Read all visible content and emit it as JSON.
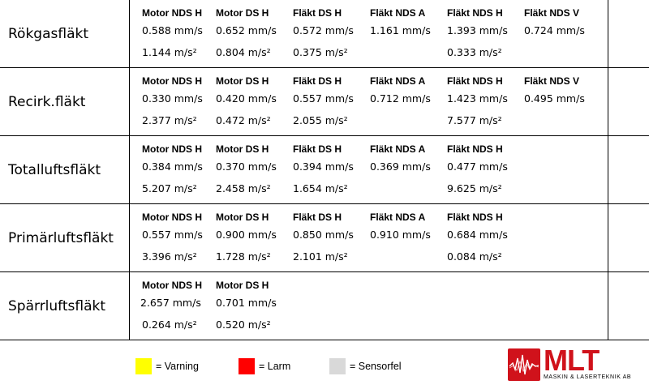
{
  "colors": {
    "varning": "#ffff00",
    "larm": "#ff0000",
    "sensorfel": "#d9d9d9",
    "logo_red": "#d0121b"
  },
  "rows": [
    {
      "title": "Rökgasfläkt",
      "sensors": [
        {
          "name": "Motor NDS H",
          "velocity": "0.588 mm/s",
          "acceleration": "1.144 m/s²"
        },
        {
          "name": "Motor DS H",
          "velocity": "0.652 mm/s",
          "acceleration": "0.804 m/s²"
        },
        {
          "name": "Fläkt DS H",
          "velocity": "0.572 mm/s",
          "acceleration": "0.375 m/s²"
        },
        {
          "name": "Fläkt NDS A",
          "velocity": "1.161 mm/s",
          "acceleration": ""
        },
        {
          "name": "Fläkt NDS H",
          "velocity": "1.393 mm/s",
          "acceleration": "0.333 m/s²"
        },
        {
          "name": "Fläkt NDS V",
          "velocity": "0.724 mm/s",
          "acceleration": ""
        }
      ]
    },
    {
      "title": "Recirk.fläkt",
      "sensors": [
        {
          "name": "Motor NDS H",
          "velocity": "0.330 mm/s",
          "acceleration": "2.377 m/s²"
        },
        {
          "name": "Motor DS H",
          "velocity": "0.420 mm/s",
          "acceleration": "0.472 m/s²"
        },
        {
          "name": "Fläkt DS H",
          "velocity": "0.557 mm/s",
          "acceleration": "2.055 m/s²"
        },
        {
          "name": "Fläkt NDS A",
          "velocity": "0.712 mm/s",
          "acceleration": ""
        },
        {
          "name": "Fläkt NDS H",
          "velocity": "1.423 mm/s",
          "acceleration": "7.577 m/s²"
        },
        {
          "name": "Fläkt NDS V",
          "velocity": "0.495 mm/s",
          "acceleration": ""
        }
      ]
    },
    {
      "title": "Totalluftsfläkt",
      "sensors": [
        {
          "name": "Motor NDS H",
          "velocity": "0.384 mm/s",
          "acceleration": "5.207 m/s²"
        },
        {
          "name": "Motor DS H",
          "velocity": "0.370 mm/s",
          "acceleration": "2.458 m/s²"
        },
        {
          "name": "Fläkt DS H",
          "velocity": "0.394 mm/s",
          "acceleration": "1.654 m/s²"
        },
        {
          "name": "Fläkt NDS A",
          "velocity": "0.369 mm/s",
          "acceleration": ""
        },
        {
          "name": "Fläkt NDS H",
          "velocity": "0.477 mm/s",
          "acceleration": "9.625 m/s²"
        }
      ]
    },
    {
      "title": "Primärluftsfläkt",
      "sensors": [
        {
          "name": "Motor NDS H",
          "velocity": "0.557 mm/s",
          "acceleration": "3.396 m/s²"
        },
        {
          "name": "Motor DS H",
          "velocity": "0.900 mm/s",
          "acceleration": "1.728 m/s²"
        },
        {
          "name": "Fläkt DS H",
          "velocity": "0.850 mm/s",
          "acceleration": "2.101 m/s²"
        },
        {
          "name": "Fläkt NDS A",
          "velocity": "0.910 mm/s",
          "acceleration": ""
        },
        {
          "name": "Fläkt NDS H",
          "velocity": "0.684 mm/s",
          "acceleration": "0.084 m/s²"
        }
      ]
    },
    {
      "title": "Spärrluftsfläkt",
      "sensors": [
        {
          "name": "Motor NDS H",
          "velocity": "2.657 mm/s",
          "acceleration": "0.264 m/s²"
        },
        {
          "name": "Motor DS H",
          "velocity": "0.701 mm/s",
          "acceleration": "0.520 m/s²"
        }
      ]
    }
  ],
  "legend": [
    {
      "label": "= Varning",
      "color_key": "varning"
    },
    {
      "label": "= Larm",
      "color_key": "larm"
    },
    {
      "label": "= Sensorfel",
      "color_key": "sensorfel"
    }
  ],
  "logo": {
    "letters": "MLT",
    "subtitle": "MASKIN & LASERTEKNIK AB",
    "icon": "waveform-logo-icon"
  }
}
